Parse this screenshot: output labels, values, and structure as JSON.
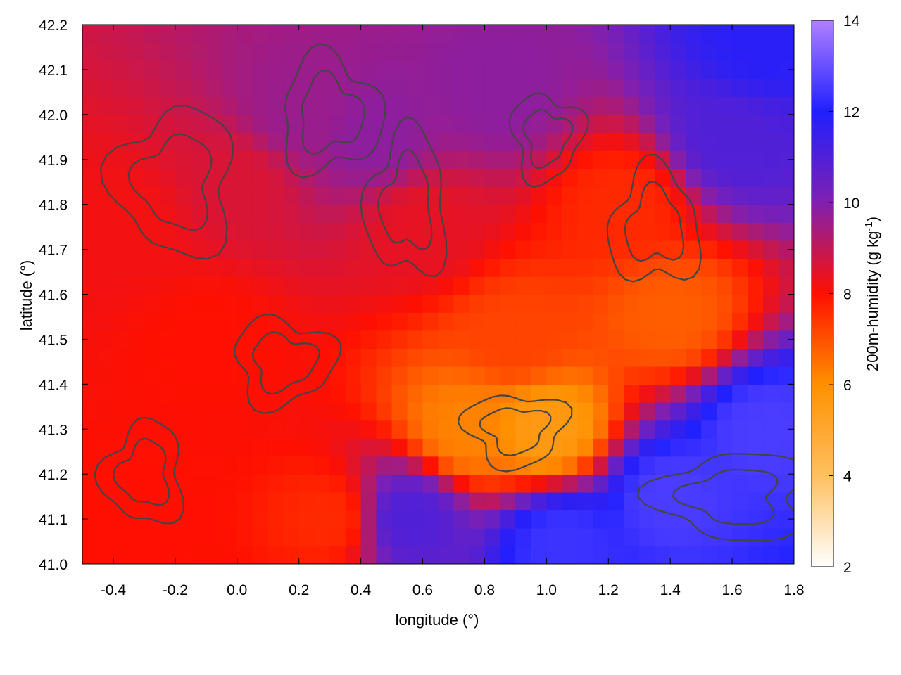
{
  "chart_data": {
    "type": "heatmap",
    "title": "",
    "xlabel": "longitude (°)",
    "ylabel": "latitude (°)",
    "colorbar_label": "200m-humidity (g kg",
    "colorbar_label_sup": "-1",
    "colorbar_label_end": ")",
    "xlim": [
      -0.5,
      1.8
    ],
    "ylim": [
      41.0,
      42.2
    ],
    "zlim": [
      2,
      14
    ],
    "xticks": [
      -0.4,
      -0.2,
      0.0,
      0.2,
      0.4,
      0.6,
      0.8,
      1.0,
      1.2,
      1.4,
      1.6,
      1.8
    ],
    "xtick_labels": [
      "-0.4",
      "-0.2",
      "0.0",
      "0.2",
      "0.4",
      "0.6",
      "0.8",
      "1.0",
      "1.2",
      "1.4",
      "1.6",
      "1.8"
    ],
    "yticks": [
      41.0,
      41.1,
      41.2,
      41.3,
      41.4,
      41.5,
      41.6,
      41.7,
      41.8,
      41.9,
      42.0,
      42.1,
      42.2
    ],
    "ytick_labels": [
      "41.0",
      "41.1",
      "41.2",
      "41.3",
      "41.4",
      "41.5",
      "41.6",
      "41.7",
      "41.8",
      "41.9",
      "42.0",
      "42.1",
      "42.2"
    ],
    "zticks": [
      2,
      4,
      6,
      8,
      10,
      12,
      14
    ],
    "ztick_labels": [
      "2",
      "4",
      "6",
      "8",
      "10",
      "12",
      "14"
    ],
    "colormap": [
      {
        "value": 2,
        "color": "#ffffff"
      },
      {
        "value": 4,
        "color": "#ffc060"
      },
      {
        "value": 6,
        "color": "#ff9000"
      },
      {
        "value": 8,
        "color": "#ff1000"
      },
      {
        "value": 10,
        "color": "#8020b0"
      },
      {
        "value": 12,
        "color": "#2020ff"
      },
      {
        "value": 14,
        "color": "#b080ff"
      }
    ],
    "regions": [
      {
        "lon": -0.35,
        "lat": 41.75,
        "z": 8.2
      },
      {
        "lon": -0.1,
        "lat": 41.5,
        "z": 8.0
      },
      {
        "lon": 0.0,
        "lat": 41.85,
        "z": 8.6
      },
      {
        "lon": 0.2,
        "lat": 42.0,
        "z": 9.6
      },
      {
        "lon": 0.45,
        "lat": 41.95,
        "z": 9.8
      },
      {
        "lon": 0.6,
        "lat": 41.75,
        "z": 8.4
      },
      {
        "lon": 0.75,
        "lat": 41.3,
        "z": 6.2
      },
      {
        "lon": 0.9,
        "lat": 41.5,
        "z": 7.2
      },
      {
        "lon": 1.0,
        "lat": 41.3,
        "z": 5.6
      },
      {
        "lon": 1.25,
        "lat": 41.8,
        "z": 7.6
      },
      {
        "lon": 1.4,
        "lat": 41.55,
        "z": 6.8
      },
      {
        "lon": 1.6,
        "lat": 41.95,
        "z": 11.0
      },
      {
        "lon": 1.7,
        "lat": 42.15,
        "z": 11.8
      },
      {
        "lon": 1.4,
        "lat": 41.15,
        "z": 12.6
      },
      {
        "lon": 1.7,
        "lat": 41.3,
        "z": 12.6
      },
      {
        "lon": 1.05,
        "lat": 41.05,
        "z": 12.4
      },
      {
        "lon": 0.55,
        "lat": 41.1,
        "z": 11.0
      },
      {
        "lon": 0.3,
        "lat": 41.1,
        "z": 7.6
      },
      {
        "lon": -0.3,
        "lat": 41.1,
        "z": 8.0
      },
      {
        "lon": 0.85,
        "lat": 42.05,
        "z": 9.8
      }
    ],
    "contour_color": "#444444",
    "grid": false
  }
}
